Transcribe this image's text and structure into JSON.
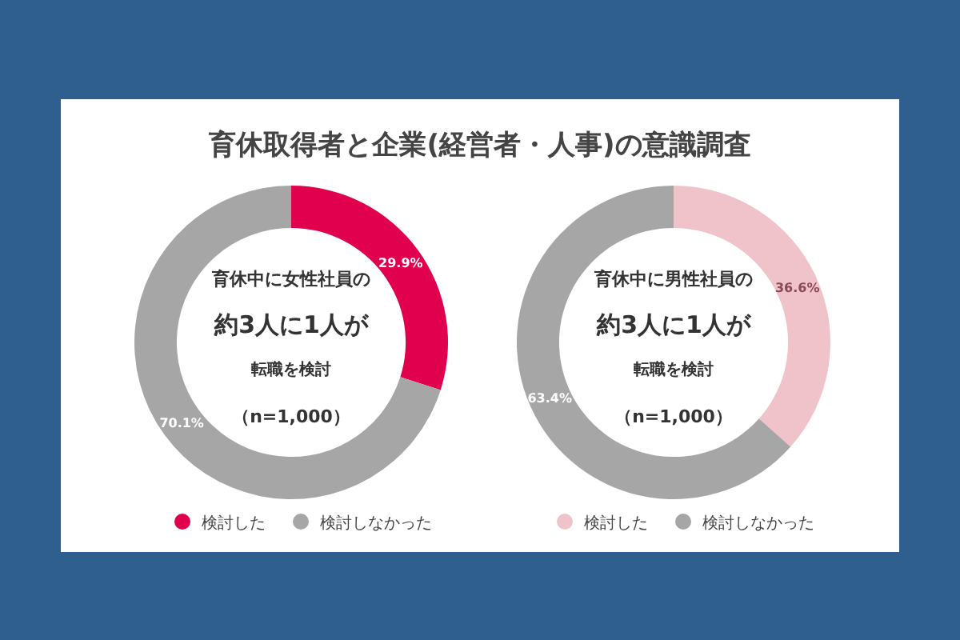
{
  "chart_data": [
    {
      "type": "donut",
      "title": "育休取得者と企業(経営者・人事)の意識調査",
      "categories": [
        "検討した",
        "検討しなかった"
      ],
      "values": [
        29.9,
        70.1
      ],
      "colors": [
        "#e0004d",
        "#a6a6a6"
      ],
      "value_labels": [
        "29.9%",
        "70.1%"
      ],
      "legend": "bottom",
      "annotations": [
        "育休中に女性社員の",
        "約3人に1人が",
        "転職を検討",
        "（n=1,000）"
      ]
    },
    {
      "type": "donut",
      "categories": [
        "検討した",
        "検討しなかった"
      ],
      "values": [
        36.6,
        63.4
      ],
      "colors": [
        "#f0c2ca",
        "#a6a6a6"
      ],
      "value_labels": [
        "36.6%",
        "63.4%"
      ],
      "legend": "bottom",
      "annotations": [
        "育休中に男性社員の",
        "約3人に1人が",
        "転職を検討",
        "（n=1,000）"
      ]
    }
  ]
}
